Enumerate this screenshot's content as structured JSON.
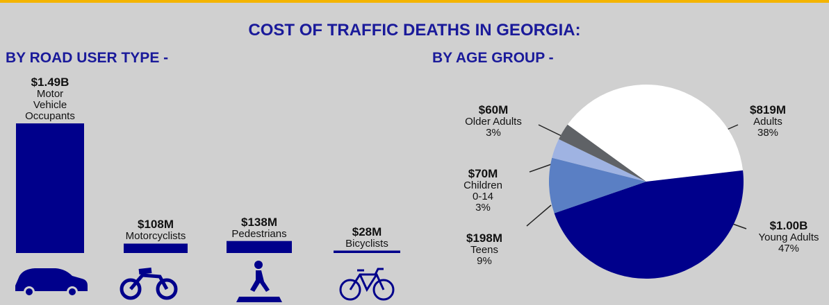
{
  "title": "COST OF TRAFFIC DEATHS IN GEORGIA:",
  "chart_data": [
    {
      "type": "bar",
      "title": "BY ROAD USER TYPE -",
      "categories": [
        "Motor Vehicle Occupants",
        "Motorcyclists",
        "Pedestrians",
        "Bicyclists"
      ],
      "values": [
        1490,
        108,
        138,
        28
      ],
      "value_labels": [
        "$1.49B",
        "$108M",
        "$138M",
        "$28M"
      ],
      "color": "#00008b"
    },
    {
      "type": "pie",
      "title": "BY AGE GROUP -",
      "categories": [
        "Adults",
        "Young Adults",
        "Teens",
        "Children 0-14",
        "Older Adults"
      ],
      "values": [
        819,
        1000,
        198,
        70,
        60
      ],
      "value_labels": [
        "$819M",
        "$1.00B",
        "$198M",
        "$70M",
        "$60M"
      ],
      "percent_labels": [
        "38%",
        "47%",
        "9%",
        "3%",
        "3%"
      ],
      "colors": [
        "#ffffff",
        "#00008b",
        "#5a7fc4",
        "#9fb3e2",
        "#5f6266"
      ]
    }
  ]
}
